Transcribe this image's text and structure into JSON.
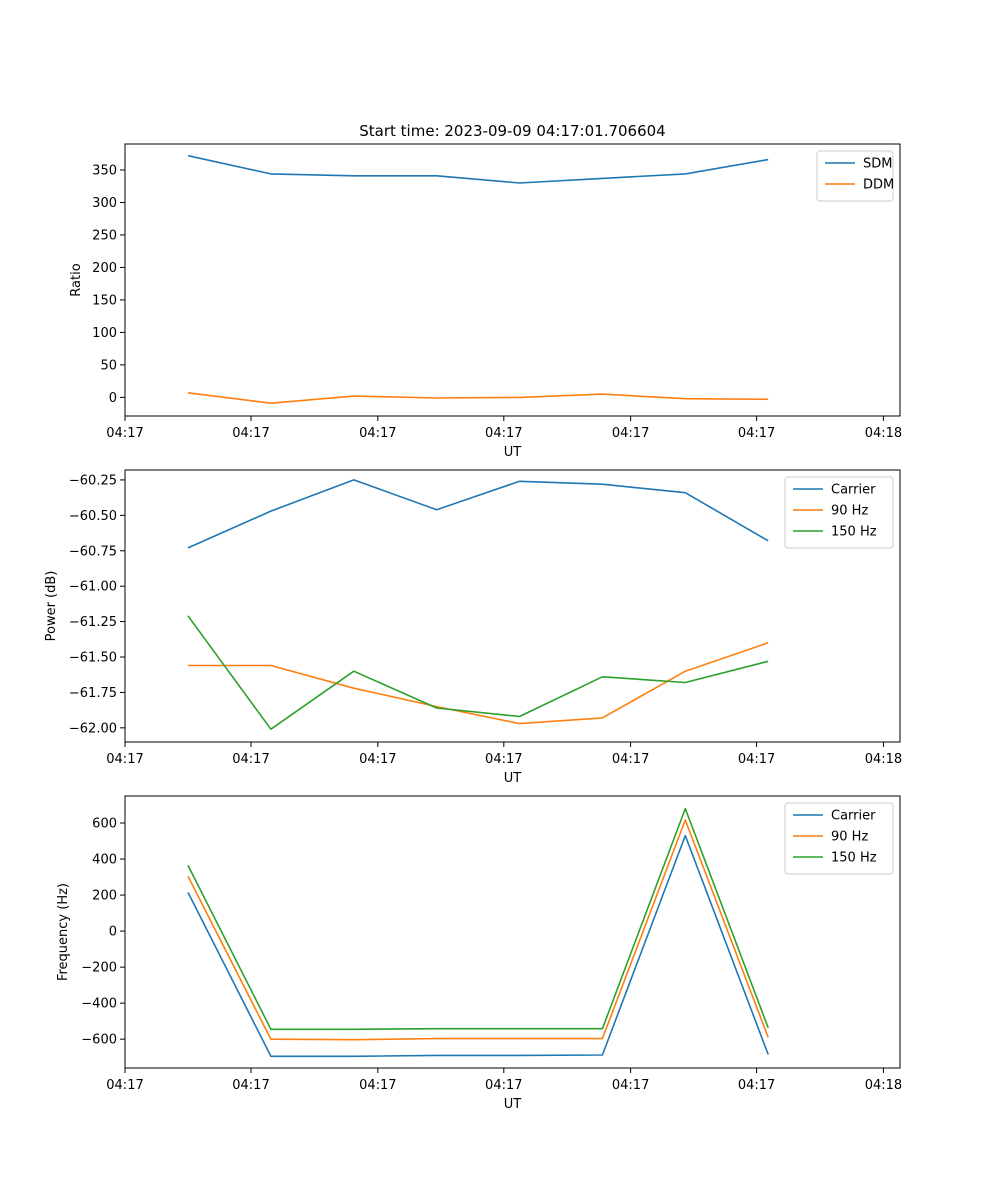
{
  "chart_data": [
    {
      "type": "line",
      "title": "Start time: 2023-09-09 04:17:01.706604",
      "xlabel": "UT",
      "ylabel": "Ratio",
      "x": [
        0,
        1,
        2,
        3,
        4,
        5,
        6,
        7
      ],
      "xlim": [
        -0.76,
        8.59
      ],
      "x_ticks": [
        -0.76,
        0.76,
        2.29,
        3.81,
        5.34,
        6.86,
        8.39
      ],
      "x_tick_labels": [
        "04:17",
        "04:17",
        "04:17",
        "04:17",
        "04:17",
        "04:17",
        "04:18"
      ],
      "ylim": [
        -28.7,
        390.0
      ],
      "y_ticks": [
        0,
        50,
        100,
        150,
        200,
        250,
        300,
        350
      ],
      "y_tick_labels": [
        "0",
        "50",
        "100",
        "150",
        "200",
        "250",
        "300",
        "350"
      ],
      "legend_position": "top-right",
      "series": [
        {
          "name": "SDM",
          "color": "#1f77b4",
          "values": [
            372,
            344,
            341,
            341,
            330,
            337,
            344,
            366
          ]
        },
        {
          "name": "DDM",
          "color": "#ff7f0e",
          "values": [
            7,
            -9,
            2,
            -1,
            0,
            5,
            -2,
            -3
          ]
        }
      ]
    },
    {
      "type": "line",
      "title": "",
      "xlabel": "UT",
      "ylabel": "Power (dB)",
      "x": [
        0,
        1,
        2,
        3,
        4,
        5,
        6,
        7
      ],
      "xlim": [
        -0.76,
        8.59
      ],
      "x_ticks": [
        -0.76,
        0.76,
        2.29,
        3.81,
        5.34,
        6.86,
        8.39
      ],
      "x_tick_labels": [
        "04:17",
        "04:17",
        "04:17",
        "04:17",
        "04:17",
        "04:17",
        "04:18"
      ],
      "ylim": [
        -62.1,
        -60.18
      ],
      "y_ticks": [
        -62.0,
        -61.75,
        -61.5,
        -61.25,
        -61.0,
        -60.75,
        -60.5,
        -60.25
      ],
      "y_tick_labels": [
        "−62.00",
        "−61.75",
        "−61.50",
        "−61.25",
        "−61.00",
        "−60.75",
        "−60.50",
        "−60.25"
      ],
      "legend_position": "top-right",
      "series": [
        {
          "name": "Carrier",
          "color": "#1f77b4",
          "values": [
            -60.73,
            -60.47,
            -60.25,
            -60.46,
            -60.26,
            -60.28,
            -60.34,
            -60.68
          ]
        },
        {
          "name": "90 Hz",
          "color": "#ff7f0e",
          "values": [
            -61.56,
            -61.56,
            -61.72,
            -61.85,
            -61.97,
            -61.93,
            -61.6,
            -61.4
          ]
        },
        {
          "name": "150 Hz",
          "color": "#2ca02c",
          "values": [
            -61.21,
            -62.01,
            -61.6,
            -61.86,
            -61.92,
            -61.64,
            -61.68,
            -61.53
          ]
        }
      ]
    },
    {
      "type": "line",
      "title": "",
      "xlabel": "UT",
      "ylabel": "Frequency (Hz)",
      "x": [
        0,
        1,
        2,
        3,
        4,
        5,
        6,
        7
      ],
      "xlim": [
        -0.76,
        8.59
      ],
      "x_ticks": [
        -0.76,
        0.76,
        2.29,
        3.81,
        5.34,
        6.86,
        8.39
      ],
      "x_tick_labels": [
        "04:17",
        "04:17",
        "04:17",
        "04:17",
        "04:17",
        "04:17",
        "04:18"
      ],
      "ylim": [
        -760,
        750
      ],
      "y_ticks": [
        -600,
        -400,
        -200,
        0,
        200,
        400,
        600
      ],
      "y_tick_labels": [
        "−600",
        "−400",
        "−200",
        "0",
        "200",
        "400",
        "600"
      ],
      "legend_position": "top-right",
      "series": [
        {
          "name": "Carrier",
          "color": "#1f77b4",
          "values": [
            215,
            -695,
            -695,
            -690,
            -690,
            -688,
            530,
            -685
          ]
        },
        {
          "name": "90 Hz",
          "color": "#ff7f0e",
          "values": [
            305,
            -600,
            -603,
            -597,
            -597,
            -597,
            617,
            -590
          ]
        },
        {
          "name": "150 Hz",
          "color": "#2ca02c",
          "values": [
            365,
            -545,
            -545,
            -542,
            -542,
            -542,
            680,
            -537
          ]
        }
      ]
    }
  ]
}
